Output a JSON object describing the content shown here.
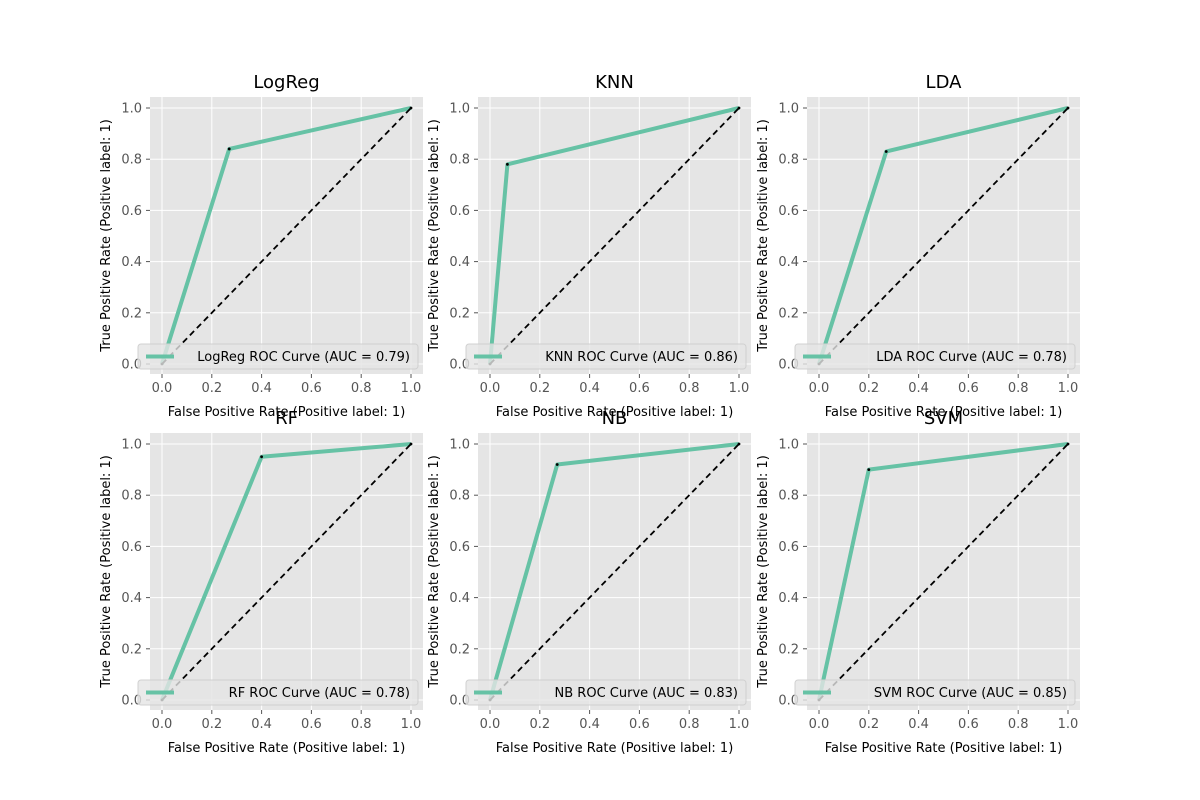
{
  "colors": {
    "curve": "#66c2a5",
    "diagonal": "#000000",
    "plot_background": "#e5e5e5",
    "grid": "#ffffff",
    "tick_text": "#555555"
  },
  "chart_data": [
    {
      "type": "line",
      "title": "LogReg",
      "xlabel": "False Positive Rate (Positive label: 1)",
      "ylabel": "True Positive Rate (Positive label: 1)",
      "xlim": [
        0,
        1
      ],
      "ylim": [
        0,
        1
      ],
      "xticks": [
        "0.0",
        "0.2",
        "0.4",
        "0.6",
        "0.8",
        "1.0"
      ],
      "yticks": [
        "0.0",
        "0.2",
        "0.4",
        "0.6",
        "0.8",
        "1.0"
      ],
      "grid": true,
      "legend_position": "lower-right",
      "series": [
        {
          "name": "LogReg ROC Curve (AUC = 0.79)",
          "x": [
            0.0,
            0.27,
            1.0
          ],
          "y": [
            0.0,
            0.84,
            1.0
          ]
        },
        {
          "x": [
            0,
            1
          ],
          "y": [
            0,
            1
          ],
          "style": "dashed"
        }
      ]
    },
    {
      "type": "line",
      "title": "KNN",
      "xlabel": "False Positive Rate (Positive label: 1)",
      "ylabel": "True Positive Rate (Positive label: 1)",
      "xlim": [
        0,
        1
      ],
      "ylim": [
        0,
        1
      ],
      "xticks": [
        "0.0",
        "0.2",
        "0.4",
        "0.6",
        "0.8",
        "1.0"
      ],
      "yticks": [
        "0.0",
        "0.2",
        "0.4",
        "0.6",
        "0.8",
        "1.0"
      ],
      "grid": true,
      "legend_position": "lower-right",
      "series": [
        {
          "name": "KNN ROC Curve (AUC = 0.86)",
          "x": [
            0.0,
            0.07,
            1.0
          ],
          "y": [
            0.0,
            0.78,
            1.0
          ]
        },
        {
          "x": [
            0,
            1
          ],
          "y": [
            0,
            1
          ],
          "style": "dashed"
        }
      ]
    },
    {
      "type": "line",
      "title": "LDA",
      "xlabel": "False Positive Rate (Positive label: 1)",
      "ylabel": "True Positive Rate (Positive label: 1)",
      "xlim": [
        0,
        1
      ],
      "ylim": [
        0,
        1
      ],
      "xticks": [
        "0.0",
        "0.2",
        "0.4",
        "0.6",
        "0.8",
        "1.0"
      ],
      "yticks": [
        "0.0",
        "0.2",
        "0.4",
        "0.6",
        "0.8",
        "1.0"
      ],
      "grid": true,
      "legend_position": "lower-right",
      "series": [
        {
          "name": "LDA ROC Curve (AUC = 0.78)",
          "x": [
            0.0,
            0.27,
            1.0
          ],
          "y": [
            0.0,
            0.83,
            1.0
          ]
        },
        {
          "x": [
            0,
            1
          ],
          "y": [
            0,
            1
          ],
          "style": "dashed"
        }
      ]
    },
    {
      "type": "line",
      "title": "RF",
      "xlabel": "False Positive Rate (Positive label: 1)",
      "ylabel": "True Positive Rate (Positive label: 1)",
      "xlim": [
        0,
        1
      ],
      "ylim": [
        0,
        1
      ],
      "xticks": [
        "0.0",
        "0.2",
        "0.4",
        "0.6",
        "0.8",
        "1.0"
      ],
      "yticks": [
        "0.0",
        "0.2",
        "0.4",
        "0.6",
        "0.8",
        "1.0"
      ],
      "grid": true,
      "legend_position": "lower-right",
      "series": [
        {
          "name": "RF ROC Curve (AUC = 0.78)",
          "x": [
            0.0,
            0.4,
            1.0
          ],
          "y": [
            0.0,
            0.95,
            1.0
          ]
        },
        {
          "x": [
            0,
            1
          ],
          "y": [
            0,
            1
          ],
          "style": "dashed"
        }
      ]
    },
    {
      "type": "line",
      "title": "NB",
      "xlabel": "False Positive Rate (Positive label: 1)",
      "ylabel": "True Positive Rate (Positive label: 1)",
      "xlim": [
        0,
        1
      ],
      "ylim": [
        0,
        1
      ],
      "xticks": [
        "0.0",
        "0.2",
        "0.4",
        "0.6",
        "0.8",
        "1.0"
      ],
      "yticks": [
        "0.0",
        "0.2",
        "0.4",
        "0.6",
        "0.8",
        "1.0"
      ],
      "grid": true,
      "legend_position": "lower-right",
      "series": [
        {
          "name": "NB ROC Curve (AUC = 0.83)",
          "x": [
            0.0,
            0.27,
            1.0
          ],
          "y": [
            0.0,
            0.92,
            1.0
          ]
        },
        {
          "x": [
            0,
            1
          ],
          "y": [
            0,
            1
          ],
          "style": "dashed"
        }
      ]
    },
    {
      "type": "line",
      "title": "SVM",
      "xlabel": "False Positive Rate (Positive label: 1)",
      "ylabel": "True Positive Rate (Positive label: 1)",
      "xlim": [
        0,
        1
      ],
      "ylim": [
        0,
        1
      ],
      "xticks": [
        "0.0",
        "0.2",
        "0.4",
        "0.6",
        "0.8",
        "1.0"
      ],
      "yticks": [
        "0.0",
        "0.2",
        "0.4",
        "0.6",
        "0.8",
        "1.0"
      ],
      "grid": true,
      "legend_position": "lower-right",
      "series": [
        {
          "name": "SVM ROC Curve (AUC = 0.85)",
          "x": [
            0.0,
            0.2,
            1.0
          ],
          "y": [
            0.0,
            0.9,
            1.0
          ]
        },
        {
          "x": [
            0,
            1
          ],
          "y": [
            0,
            1
          ],
          "style": "dashed"
        }
      ]
    }
  ]
}
